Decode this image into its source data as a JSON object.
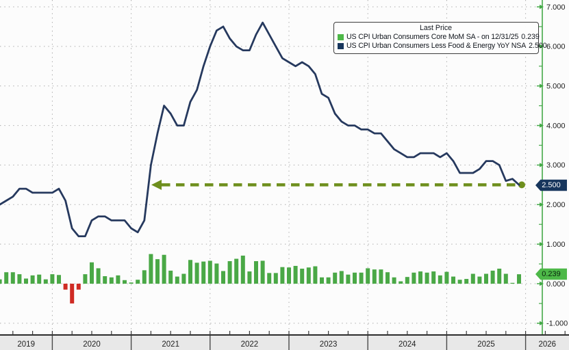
{
  "legend": {
    "title": "Last Price",
    "series": [
      {
        "label": "US CPI Urban Consumers Core MoM SA -  on 12/31/25",
        "value": "0.239",
        "swatch_color": "#4db848"
      },
      {
        "label": "US CPI Urban Consumers Less Food & Energy YoY NSA",
        "value": "2.500",
        "swatch_color": "#17365d"
      }
    ]
  },
  "badges": {
    "line_badge": {
      "text": "2.500"
    },
    "bar_badge": {
      "text": "0.239"
    }
  },
  "chart_data": {
    "type": "combo",
    "x_frequency": "monthly",
    "x_start_month": "2019-04",
    "x_end_month": "2025-12",
    "x_year_labels": [
      "2019",
      "2020",
      "2021",
      "2022",
      "2023",
      "2024",
      "2025",
      "2026"
    ],
    "y_ticks": [
      7,
      6,
      5,
      4,
      3,
      2,
      1,
      0,
      -1
    ],
    "y_tick_labels": [
      "7.000",
      "6.000",
      "5.000",
      "4.000",
      "3.000",
      "2.000",
      "1.000",
      "0.000",
      "-1.000"
    ],
    "ylim": [
      -1.25,
      7.18
    ],
    "grid": "dotted, on year boundaries and whole y units",
    "legend_position": "top-right",
    "series": [
      {
        "name": "US CPI Urban Consumers Core MoM SA",
        "type": "bar",
        "color": "#4aa846",
        "negative_color": "#cf2b24",
        "last_value": 0.239,
        "values": [
          0.14,
          0.11,
          0.29,
          0.29,
          0.24,
          0.13,
          0.21,
          0.23,
          0.11,
          0.24,
          0.22,
          -0.15,
          -0.5,
          -0.15,
          0.24,
          0.54,
          0.39,
          0.19,
          0.16,
          0.21,
          0.09,
          0.03,
          0.1,
          0.34,
          0.75,
          0.62,
          0.73,
          0.33,
          0.18,
          0.25,
          0.6,
          0.53,
          0.56,
          0.58,
          0.51,
          0.32,
          0.57,
          0.63,
          0.71,
          0.31,
          0.57,
          0.58,
          0.27,
          0.27,
          0.42,
          0.41,
          0.45,
          0.38,
          0.41,
          0.44,
          0.16,
          0.16,
          0.28,
          0.32,
          0.23,
          0.28,
          0.28,
          0.39,
          0.36,
          0.36,
          0.29,
          0.16,
          0.06,
          0.17,
          0.28,
          0.31,
          0.28,
          0.31,
          0.21,
          0.3,
          0.18,
          0.1,
          0.12,
          0.25,
          0.18,
          0.25,
          0.33,
          0.38,
          0.25,
          0.02,
          0.239
        ]
      },
      {
        "name": "US CPI Urban Consumers Less Food & Energy YoY NSA",
        "type": "line",
        "color": "#26395e",
        "last_value": 2.5,
        "values": [
          2.1,
          2.0,
          2.1,
          2.2,
          2.4,
          2.4,
          2.3,
          2.3,
          2.3,
          2.3,
          2.4,
          2.1,
          1.4,
          1.2,
          1.2,
          1.6,
          1.7,
          1.7,
          1.6,
          1.6,
          1.6,
          1.4,
          1.3,
          1.6,
          3.0,
          3.8,
          4.5,
          4.3,
          4.0,
          4.0,
          4.6,
          4.9,
          5.5,
          6.0,
          6.4,
          6.5,
          6.2,
          6.0,
          5.9,
          5.9,
          6.3,
          6.6,
          6.3,
          6.0,
          5.7,
          5.6,
          5.5,
          5.6,
          5.5,
          5.3,
          4.8,
          4.7,
          4.3,
          4.1,
          4.0,
          4.0,
          3.9,
          3.9,
          3.8,
          3.8,
          3.6,
          3.4,
          3.3,
          3.2,
          3.2,
          3.3,
          3.3,
          3.3,
          3.2,
          3.3,
          3.1,
          2.8,
          2.8,
          2.8,
          2.9,
          3.1,
          3.1,
          3.0,
          2.6,
          2.65,
          2.5
        ]
      }
    ],
    "annotation": {
      "type": "dashed-arrow-left",
      "level": 2.5,
      "from_month": "2021-04",
      "to_month": "2025-12",
      "color": "#6e8f1d"
    },
    "axis_colors": {
      "axis_line": "#44a947",
      "grid": "#a8a8a8",
      "tick_text": "#1a1a1a",
      "year_strip_bg": "#e8e8e8",
      "bottom_axis_line": "#2b2b2b"
    }
  }
}
